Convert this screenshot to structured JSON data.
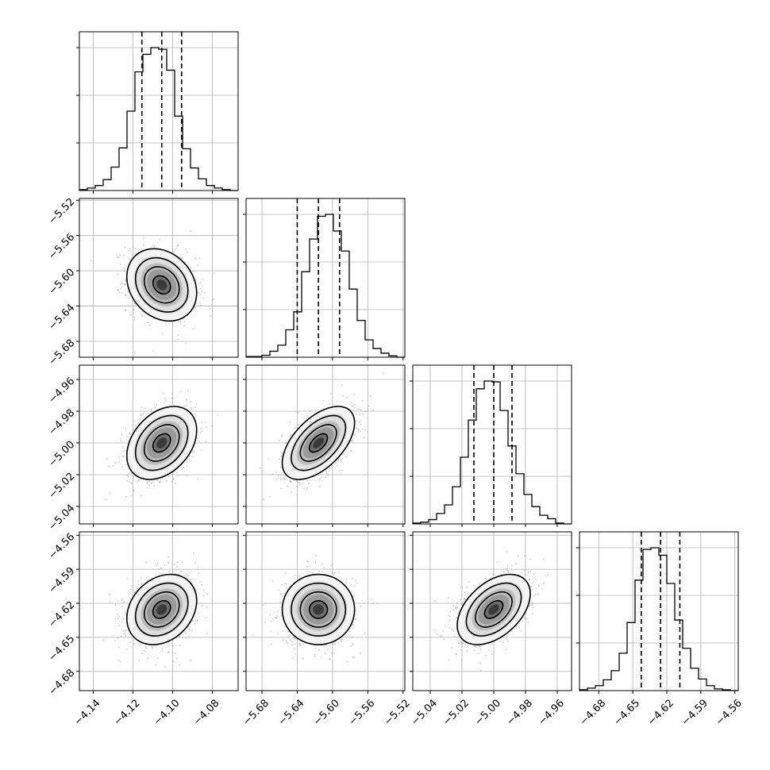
{
  "chart_data": {
    "type": "corner",
    "parameter_count": 4,
    "grid": true,
    "quantile_lines": "dashed",
    "scatter_color": "#9a9a9a",
    "contour_color": "#000000",
    "histogram_color": "#000000",
    "axes": [
      {
        "range": [
          -4.147,
          -4.067
        ],
        "ticks": [
          -4.14,
          -4.12,
          -4.1,
          -4.08
        ],
        "tick_labels": [
          "−4.14",
          "−4.12",
          "−4.10",
          "−4.08"
        ],
        "histogram_values": [
          1,
          3,
          6,
          13,
          28,
          51,
          95,
          142,
          163,
          171,
          169,
          144,
          89,
          50,
          27,
          14,
          6,
          3,
          1,
          0
        ],
        "quantiles": [
          -4.1155,
          -4.1055,
          -4.0955
        ]
      },
      {
        "range": [
          -5.698,
          -5.518
        ],
        "ticks": [
          -5.68,
          -5.64,
          -5.6,
          -5.56,
          -5.52
        ],
        "tick_labels": [
          "−5.68",
          "−5.64",
          "−5.60",
          "−5.56",
          "−5.52"
        ],
        "histogram_values": [
          1,
          1,
          3,
          9,
          18,
          41,
          68,
          128,
          177,
          211,
          214,
          189,
          159,
          102,
          55,
          26,
          13,
          6,
          2,
          0
        ],
        "quantiles": [
          -5.64,
          -5.616,
          -5.592
        ]
      },
      {
        "range": [
          -5.051,
          -4.951
        ],
        "ticks": [
          -5.04,
          -5.02,
          -5.0,
          -4.98,
          -4.96
        ],
        "tick_labels": [
          "−5.04",
          "−5.02",
          "−5.00",
          "−4.98",
          "−4.96"
        ],
        "histogram_values": [
          1,
          2,
          5,
          12,
          22,
          43,
          77,
          120,
          156,
          165,
          164,
          131,
          90,
          58,
          34,
          20,
          10,
          6,
          1,
          0
        ],
        "quantiles": [
          -5.0125,
          -5.0,
          -4.9885
        ]
      },
      {
        "range": [
          -4.697,
          -4.557
        ],
        "ticks": [
          -4.68,
          -4.65,
          -4.62,
          -4.59,
          -4.56
        ],
        "tick_labels": [
          "−4.68",
          "−4.65",
          "−4.62",
          "−4.59",
          "−4.56"
        ],
        "histogram_values": [
          1,
          3,
          6,
          13,
          24,
          45,
          82,
          133,
          170,
          172,
          163,
          129,
          85,
          51,
          27,
          14,
          6,
          2,
          1,
          0
        ],
        "quantiles": [
          -4.6425,
          -4.6255,
          -4.6085
        ]
      }
    ],
    "pairs": [
      {
        "row": 1,
        "col": 0,
        "center": [
          -4.1055,
          -5.616
        ],
        "sigma": [
          0.0088,
          0.0205
        ],
        "correlation": -0.22
      },
      {
        "row": 2,
        "col": 0,
        "center": [
          -4.1055,
          -5.0
        ],
        "sigma": [
          0.0088,
          0.0115
        ],
        "correlation": 0.35
      },
      {
        "row": 2,
        "col": 1,
        "center": [
          -5.616,
          -5.0
        ],
        "sigma": [
          0.0205,
          0.0115
        ],
        "correlation": 0.55
      },
      {
        "row": 3,
        "col": 0,
        "center": [
          -4.1055,
          -4.6255
        ],
        "sigma": [
          0.0088,
          0.0155
        ],
        "correlation": 0.25
      },
      {
        "row": 3,
        "col": 1,
        "center": [
          -5.616,
          -4.6255
        ],
        "sigma": [
          0.0205,
          0.0155
        ],
        "correlation": 0.0
      },
      {
        "row": 3,
        "col": 2,
        "center": [
          -5.0,
          -4.6255
        ],
        "sigma": [
          0.0115,
          0.0155
        ],
        "correlation": 0.45
      }
    ]
  }
}
